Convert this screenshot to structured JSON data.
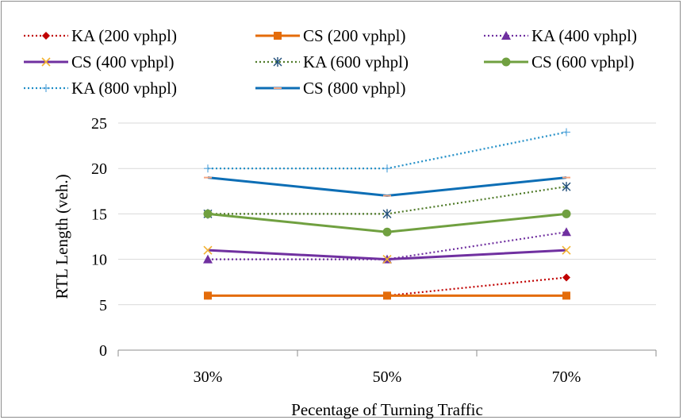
{
  "chart_data": {
    "type": "line",
    "title": "",
    "xlabel": "Pecentage of Turning Traffic",
    "ylabel": "RTL Length (veh.)",
    "categories": [
      "30%",
      "50%",
      "70%"
    ],
    "ylim": [
      0,
      25
    ],
    "yticks": [
      "0",
      "5",
      "10",
      "15",
      "20",
      "25"
    ],
    "grid": "horizontal",
    "legend_position": "top",
    "series": [
      {
        "name": "KA (200 vphpl)",
        "values": [
          6,
          6,
          8
        ],
        "color": "#C00000",
        "dash": "dotted",
        "marker": "diamond"
      },
      {
        "name": "CS (200 vphpl)",
        "values": [
          6,
          6,
          6
        ],
        "color": "#E46C0A",
        "dash": "solid",
        "marker": "square"
      },
      {
        "name": "KA (400 vphpl)",
        "values": [
          10,
          10,
          13
        ],
        "color": "#7030A0",
        "dash": "dotted",
        "marker": "triangle"
      },
      {
        "name": "CS (400 vphpl)",
        "values": [
          11,
          10,
          11
        ],
        "color": "#7030A0",
        "dash": "solid",
        "marker": "x"
      },
      {
        "name": "KA (600 vphpl)",
        "values": [
          15,
          15,
          18
        ],
        "color": "#4F7A28",
        "dash": "dotted",
        "marker": "asterisk"
      },
      {
        "name": "CS (600 vphpl)",
        "values": [
          15,
          13,
          15
        ],
        "color": "#70A040",
        "dash": "solid",
        "marker": "circle"
      },
      {
        "name": "KA (800 vphpl)",
        "values": [
          20,
          20,
          24
        ],
        "color": "#1F8DC6",
        "dash": "dotted",
        "marker": "plus"
      },
      {
        "name": "CS (800 vphpl)",
        "values": [
          19,
          17,
          19
        ],
        "color": "#0D6EB5",
        "dash": "solid",
        "marker": "dash"
      }
    ]
  }
}
